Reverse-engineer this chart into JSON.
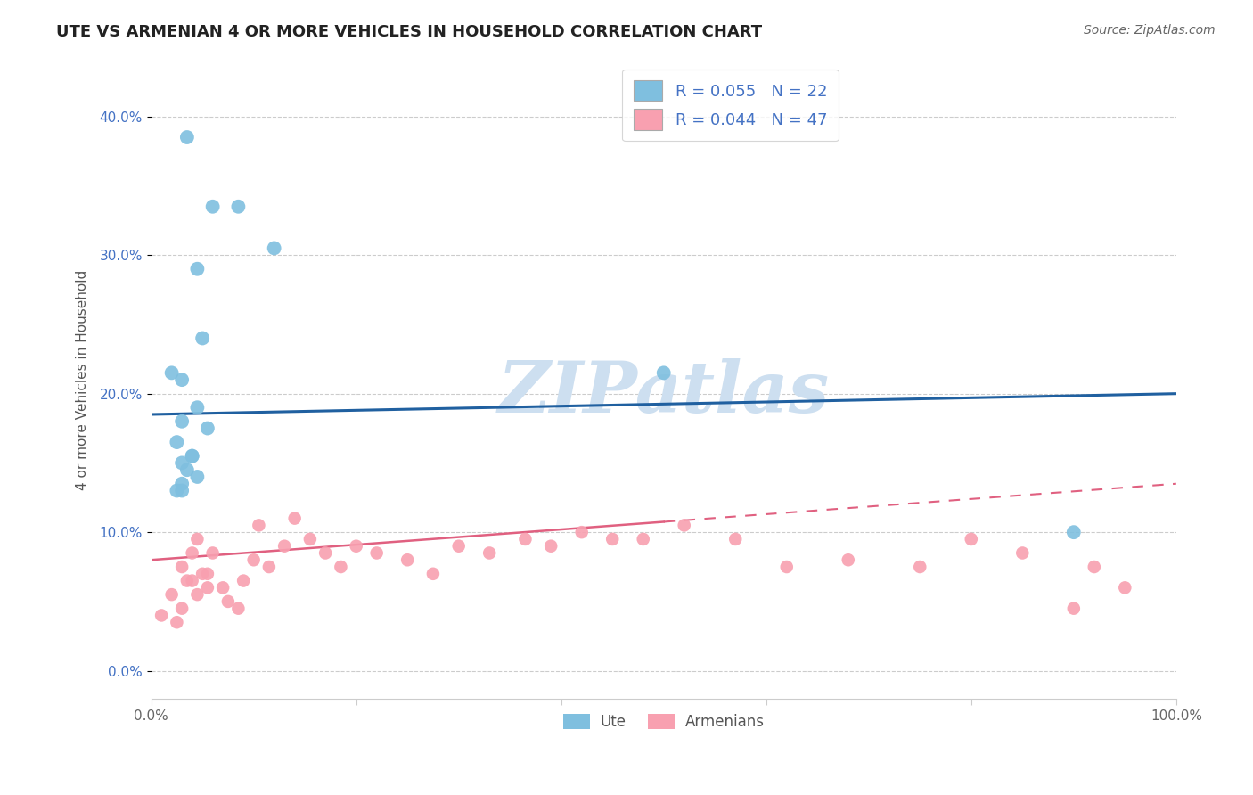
{
  "title": "UTE VS ARMENIAN 4 OR MORE VEHICLES IN HOUSEHOLD CORRELATION CHART",
  "source": "Source: ZipAtlas.com",
  "ylabel": "4 or more Vehicles in Household",
  "xlim": [
    0.0,
    100.0
  ],
  "ylim": [
    -2.0,
    44.0
  ],
  "ute_color": "#7fbfdf",
  "arm_color": "#f8a0b0",
  "ute_line_color": "#2060a0",
  "arm_line_color": "#e06080",
  "watermark": "ZIPatlas",
  "watermark_color": "#cddff0",
  "background_color": "#ffffff",
  "grid_color": "#cccccc",
  "ute_x": [
    3.5,
    6.0,
    8.5,
    4.5,
    5.0,
    2.0,
    3.0,
    4.5,
    3.0,
    2.5,
    3.0,
    3.5,
    4.0,
    4.5,
    3.0,
    2.5,
    3.0,
    4.0,
    50.0,
    90.0,
    12.0,
    5.5
  ],
  "ute_y": [
    38.5,
    33.5,
    33.5,
    29.0,
    24.0,
    21.5,
    21.0,
    19.0,
    18.0,
    16.5,
    15.0,
    14.5,
    15.5,
    14.0,
    13.5,
    13.0,
    13.0,
    15.5,
    21.5,
    10.0,
    30.5,
    17.5
  ],
  "arm_x": [
    1.0,
    2.0,
    2.5,
    3.0,
    3.5,
    3.0,
    4.5,
    4.0,
    4.0,
    5.0,
    5.5,
    4.5,
    6.0,
    5.5,
    7.0,
    7.5,
    8.5,
    9.0,
    10.0,
    10.5,
    11.5,
    13.0,
    14.0,
    15.5,
    17.0,
    18.5,
    20.0,
    22.0,
    25.0,
    27.5,
    30.0,
    33.0,
    36.5,
    39.0,
    42.0,
    45.0,
    48.0,
    52.0,
    57.0,
    62.0,
    68.0,
    75.0,
    80.0,
    85.0,
    90.0,
    92.0,
    95.0
  ],
  "arm_y": [
    4.0,
    5.5,
    3.5,
    4.5,
    6.5,
    7.5,
    5.5,
    6.5,
    8.5,
    7.0,
    6.0,
    9.5,
    8.5,
    7.0,
    6.0,
    5.0,
    4.5,
    6.5,
    8.0,
    10.5,
    7.5,
    9.0,
    11.0,
    9.5,
    8.5,
    7.5,
    9.0,
    8.5,
    8.0,
    7.0,
    9.0,
    8.5,
    9.5,
    9.0,
    10.0,
    9.5,
    9.5,
    10.5,
    9.5,
    7.5,
    8.0,
    7.5,
    9.5,
    8.5,
    4.5,
    7.5,
    6.0
  ]
}
